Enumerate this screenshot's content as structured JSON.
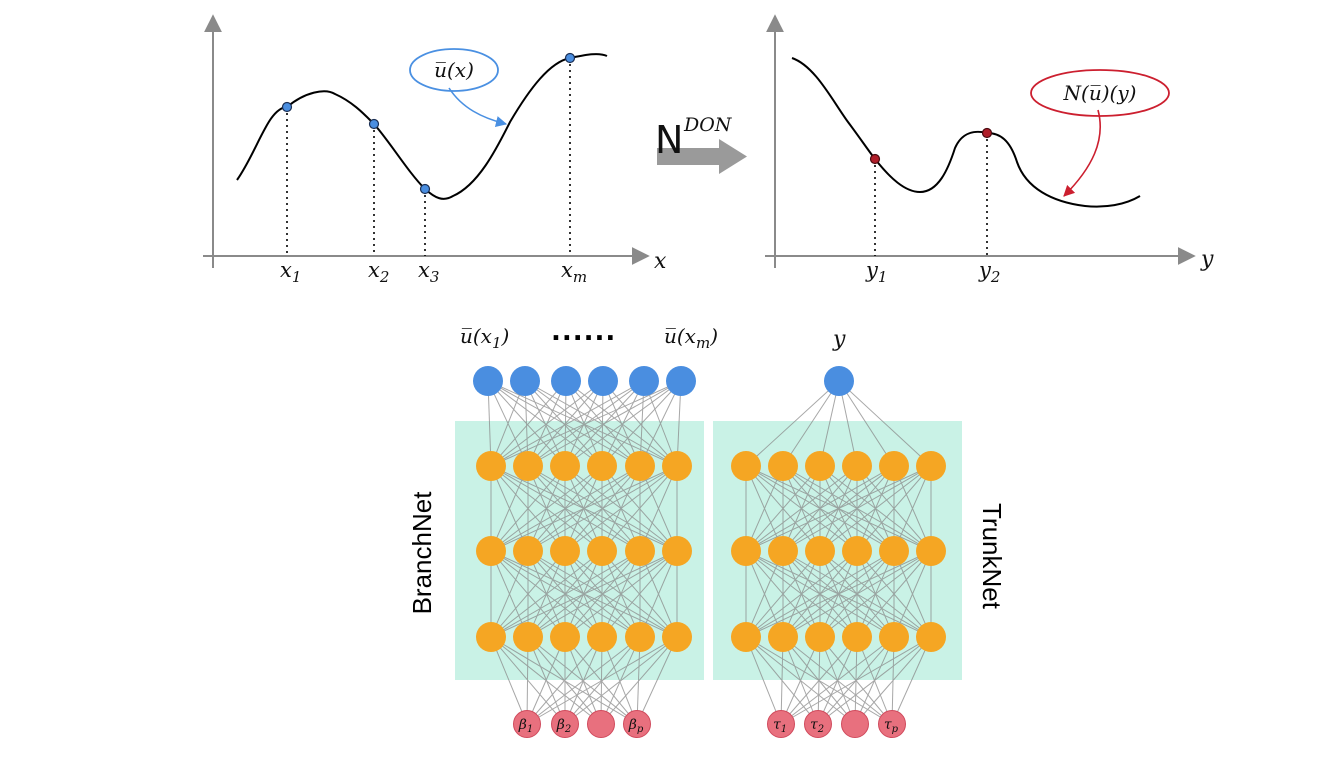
{
  "top_left_plot": {
    "axis_label": "x",
    "ticks": [
      {
        "base": "x",
        "sub": "1"
      },
      {
        "base": "x",
        "sub": "2"
      },
      {
        "base": "x",
        "sub": "3"
      },
      {
        "base": "x",
        "sub": "m"
      }
    ],
    "callout": "u̅(x)",
    "callout_color": "#4a90e2"
  },
  "operator": {
    "symbol": "N",
    "superscript": "DON"
  },
  "top_right_plot": {
    "axis_label": "y",
    "ticks": [
      {
        "base": "y",
        "sub": "1"
      },
      {
        "base": "y",
        "sub": "2"
      }
    ],
    "callout": "N(u̅)(y)",
    "callout_color": "#cc1f2f"
  },
  "branch_net": {
    "label": "BranchNet",
    "input_first": {
      "base": "u̅(x",
      "sub": "1",
      "close": ")"
    },
    "input_ellipsis": "......",
    "input_last": {
      "base": "u̅(x",
      "sub": "m",
      "close": ")"
    },
    "outputs": [
      {
        "base": "β",
        "sub": "1"
      },
      {
        "base": "β",
        "sub": "2"
      },
      {
        "base": "",
        "sub": ""
      },
      {
        "base": "β",
        "sub": "p"
      }
    ]
  },
  "trunk_net": {
    "label": "TrunkNet",
    "input": "y",
    "outputs": [
      {
        "base": "τ",
        "sub": "1"
      },
      {
        "base": "τ",
        "sub": "2"
      },
      {
        "base": "",
        "sub": ""
      },
      {
        "base": "τ",
        "sub": "p"
      }
    ]
  },
  "colors": {
    "input_node": "#4a8ee0",
    "hidden_node": "#f5a623",
    "output_node": "#e8707e",
    "panel": "#c9f2e6",
    "axis": "#888888"
  }
}
